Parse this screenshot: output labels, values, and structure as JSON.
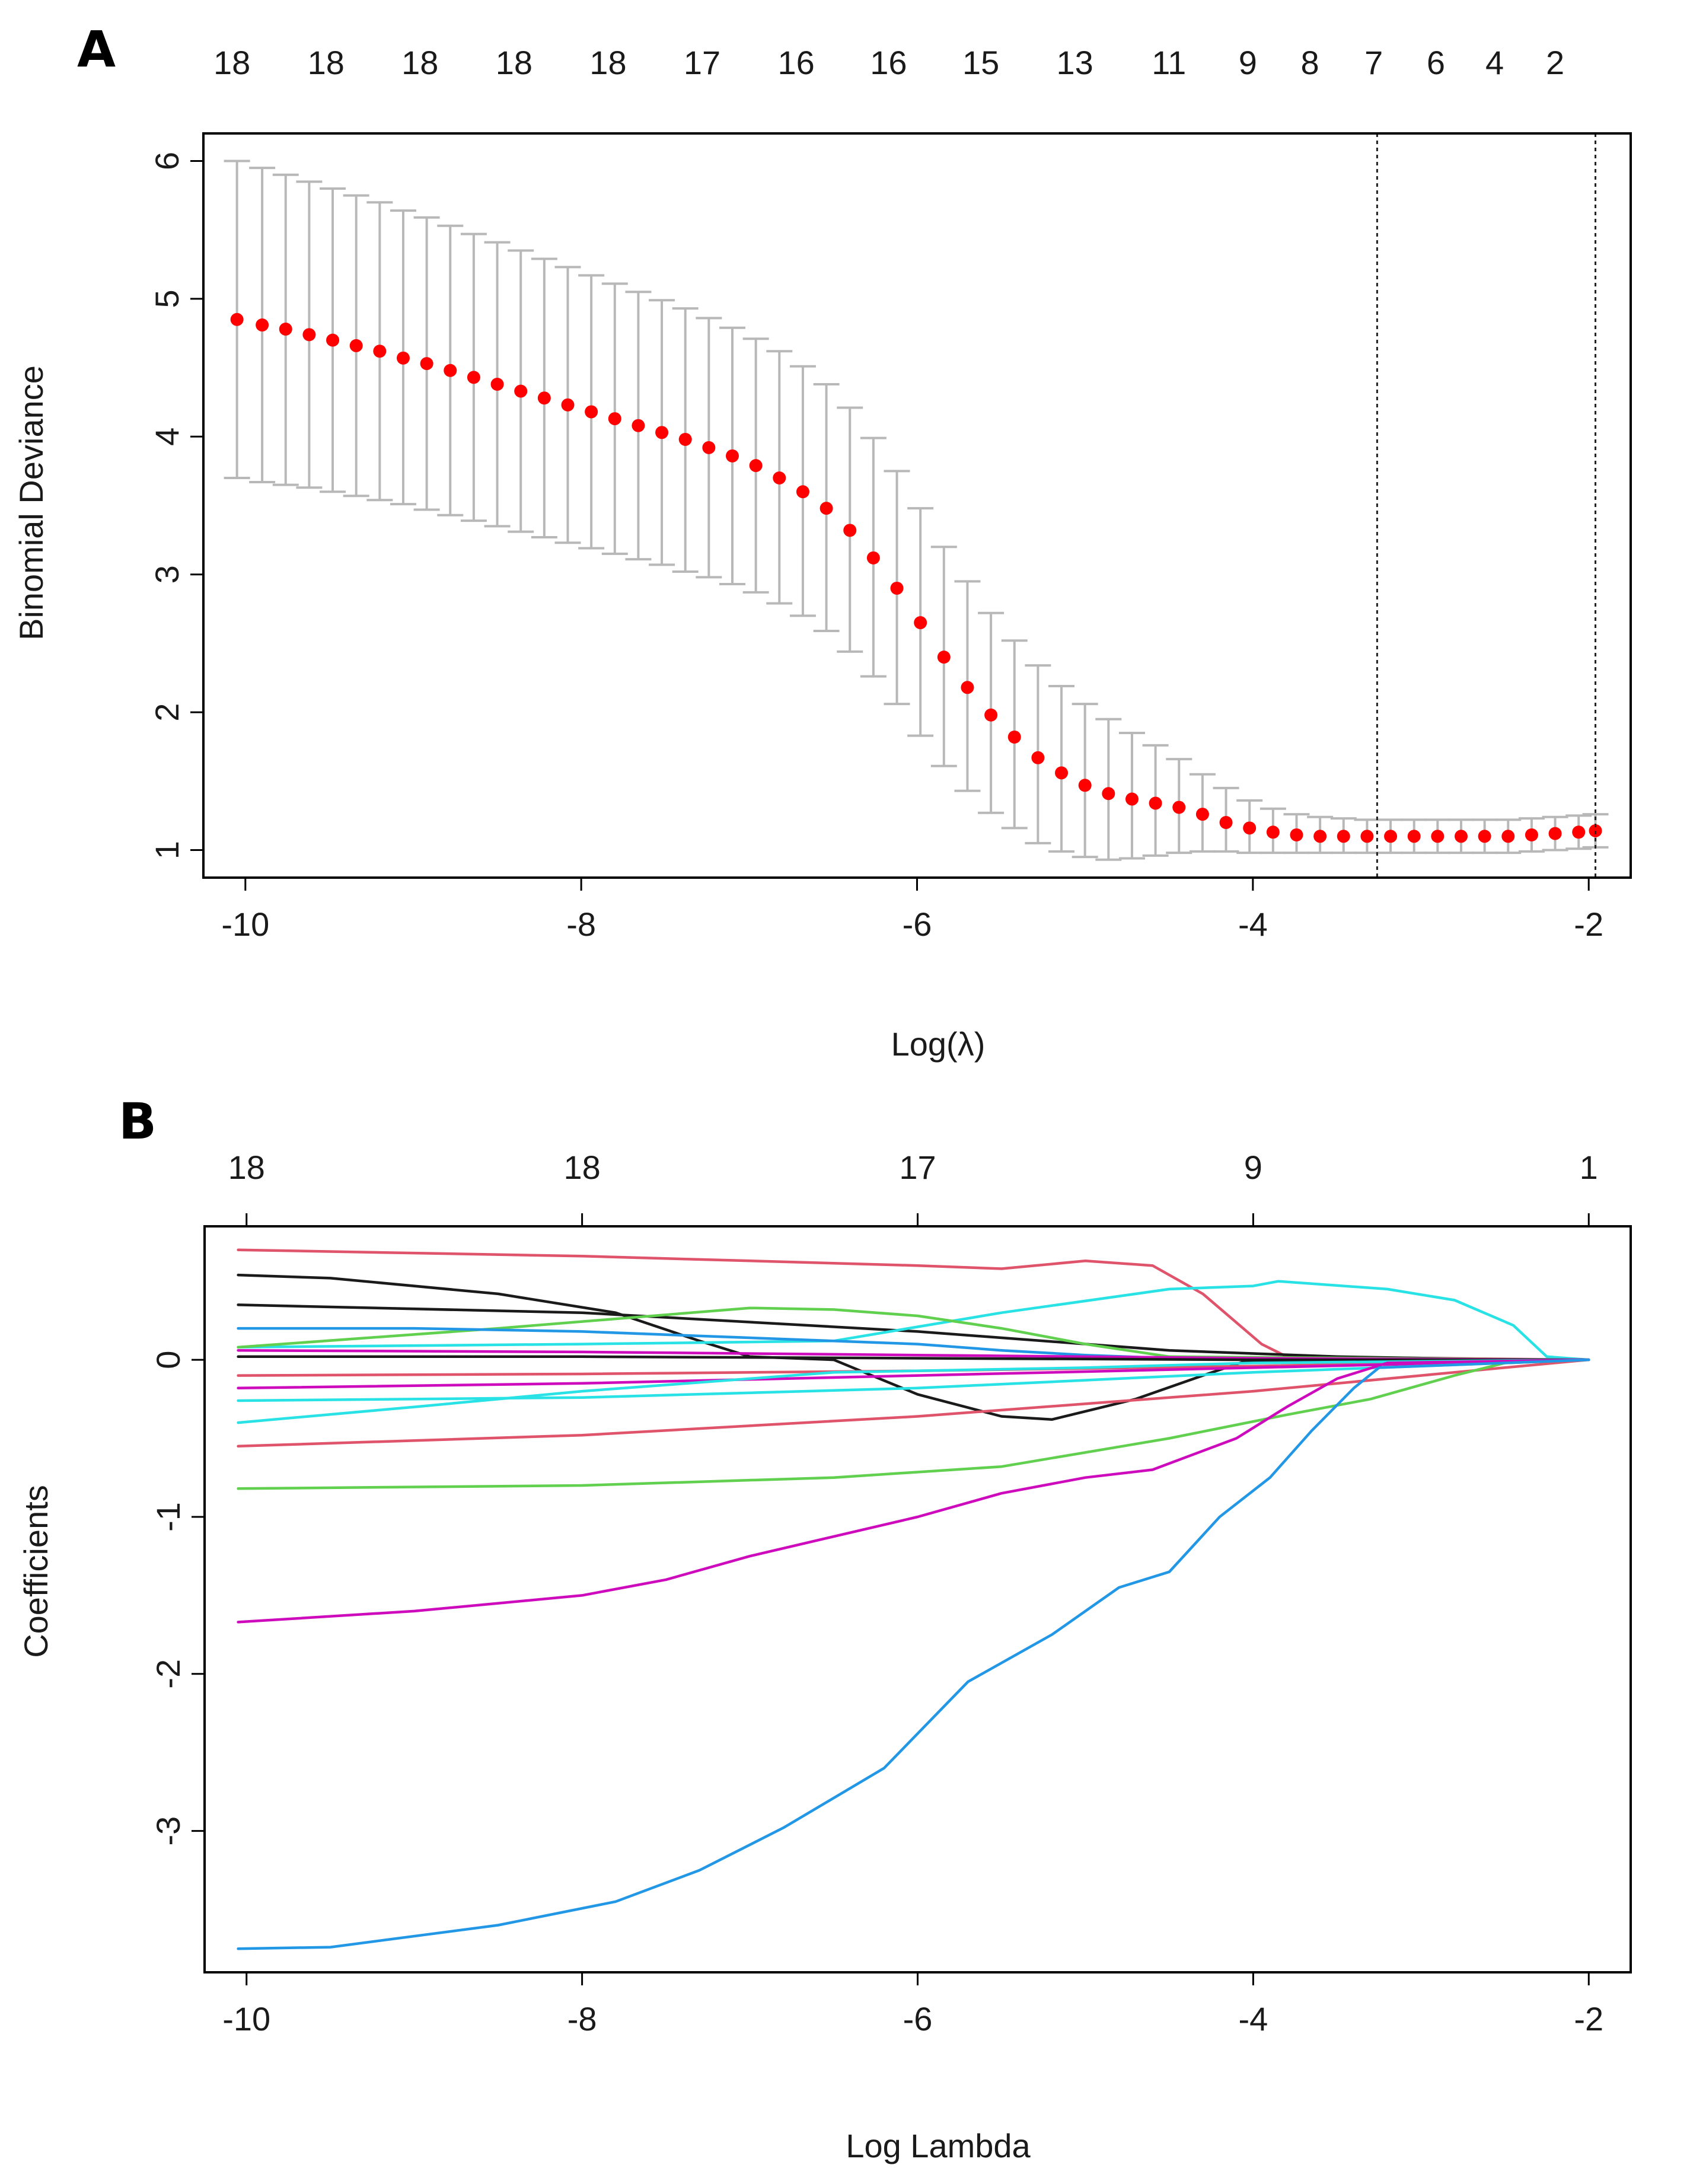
{
  "panels": {
    "a": {
      "letter": "A"
    },
    "b": {
      "letter": "B"
    }
  },
  "chart_data": [
    {
      "type": "scatter",
      "panel": "A",
      "title": "",
      "xlabel": "Log(λ)",
      "ylabel": "Binomial Deviance",
      "xlim": [
        -10.25,
        -1.75
      ],
      "ylim": [
        0.8,
        6.2
      ],
      "x_ticks": [
        -10,
        -8,
        -6,
        -4,
        -2
      ],
      "x_tick_labels": [
        "-10",
        "-8",
        "-6",
        "-4",
        "-2"
      ],
      "y_ticks": [
        1,
        2,
        3,
        4,
        5,
        6
      ],
      "y_tick_labels": [
        "1",
        "2",
        "3",
        "4",
        "5",
        "6"
      ],
      "top_axis": {
        "x": [
          -10.08,
          -9.52,
          -8.96,
          -8.4,
          -7.84,
          -7.28,
          -6.72,
          -6.17,
          -5.62,
          -5.06,
          -4.5,
          -4.03,
          -3.66,
          -3.28,
          -2.91,
          -2.56,
          -2.2
        ],
        "labels": [
          "18",
          "18",
          "18",
          "18",
          "18",
          "17",
          "16",
          "16",
          "15",
          "13",
          "11",
          "9",
          "8",
          "7",
          "6",
          "4",
          "2"
        ]
      },
      "point_color": "#ff0000",
      "errorbar_color": "#b8b8b8",
      "vertical_lines": [
        -3.26,
        -1.96
      ],
      "series": [
        {
          "x": [
            -10.05,
            -9.9,
            -9.76,
            -9.62,
            -9.48,
            -9.34,
            -9.2,
            -9.06,
            -8.92,
            -8.78,
            -8.64,
            -8.5,
            -8.36,
            -8.22,
            -8.08,
            -7.94,
            -7.8,
            -7.66,
            -7.52,
            -7.38,
            -7.24,
            -7.1,
            -6.96,
            -6.82,
            -6.68,
            -6.54,
            -6.4,
            -6.26,
            -6.12,
            -5.98,
            -5.84,
            -5.7,
            -5.56,
            -5.42,
            -5.28,
            -5.14,
            -5.0,
            -4.86,
            -4.72,
            -4.58,
            -4.44,
            -4.3,
            -4.16,
            -4.02,
            -3.88,
            -3.74,
            -3.6,
            -3.46,
            -3.32,
            -3.18,
            -3.04,
            -2.9,
            -2.76,
            -2.62,
            -2.48,
            -2.34,
            -2.2,
            -2.06,
            -1.96
          ],
          "y": [
            4.85,
            4.81,
            4.78,
            4.74,
            4.7,
            4.66,
            4.62,
            4.57,
            4.53,
            4.48,
            4.43,
            4.38,
            4.33,
            4.28,
            4.23,
            4.18,
            4.13,
            4.08,
            4.03,
            3.98,
            3.92,
            3.86,
            3.79,
            3.7,
            3.6,
            3.48,
            3.32,
            3.12,
            2.9,
            2.65,
            2.4,
            2.18,
            1.98,
            1.82,
            1.67,
            1.56,
            1.47,
            1.41,
            1.37,
            1.34,
            1.31,
            1.26,
            1.2,
            1.16,
            1.13,
            1.11,
            1.1,
            1.1,
            1.1,
            1.1,
            1.1,
            1.1,
            1.1,
            1.1,
            1.1,
            1.11,
            1.12,
            1.13,
            1.14
          ],
          "upper": [
            6.0,
            5.95,
            5.9,
            5.85,
            5.8,
            5.75,
            5.7,
            5.64,
            5.59,
            5.53,
            5.47,
            5.41,
            5.35,
            5.29,
            5.23,
            5.17,
            5.11,
            5.05,
            4.99,
            4.93,
            4.86,
            4.79,
            4.71,
            4.62,
            4.51,
            4.38,
            4.21,
            3.99,
            3.75,
            3.48,
            3.2,
            2.95,
            2.72,
            2.52,
            2.34,
            2.19,
            2.06,
            1.95,
            1.85,
            1.76,
            1.66,
            1.55,
            1.45,
            1.36,
            1.3,
            1.26,
            1.24,
            1.23,
            1.22,
            1.22,
            1.22,
            1.22,
            1.22,
            1.22,
            1.22,
            1.23,
            1.24,
            1.25,
            1.26
          ],
          "lower": [
            3.7,
            3.67,
            3.65,
            3.63,
            3.6,
            3.57,
            3.54,
            3.51,
            3.47,
            3.43,
            3.39,
            3.35,
            3.31,
            3.27,
            3.23,
            3.19,
            3.15,
            3.11,
            3.07,
            3.02,
            2.98,
            2.93,
            2.87,
            2.79,
            2.7,
            2.59,
            2.44,
            2.26,
            2.06,
            1.83,
            1.61,
            1.43,
            1.27,
            1.16,
            1.05,
            0.99,
            0.95,
            0.93,
            0.94,
            0.96,
            0.98,
            0.99,
            0.99,
            0.98,
            0.98,
            0.98,
            0.98,
            0.98,
            0.98,
            0.98,
            0.98,
            0.98,
            0.98,
            0.98,
            0.98,
            0.99,
            1.0,
            1.01,
            1.02
          ]
        }
      ]
    },
    {
      "type": "line",
      "panel": "B",
      "title": "",
      "xlabel": "Log Lambda",
      "ylabel": "Coefficients",
      "xlim": [
        -10.25,
        -1.75
      ],
      "ylim": [
        -3.9,
        0.85
      ],
      "x_ticks": [
        -10,
        -8,
        -6,
        -4,
        -2
      ],
      "x_tick_labels": [
        "-10",
        "-8",
        "-6",
        "-4",
        "-2"
      ],
      "y_ticks": [
        -3,
        -2,
        -1,
        0
      ],
      "y_tick_labels": [
        "-3",
        "-2",
        "-1",
        "0"
      ],
      "top_axis": {
        "x": [
          -10,
          -8,
          -6,
          -4,
          -2
        ],
        "labels": [
          "18",
          "18",
          "17",
          "9",
          "1"
        ]
      },
      "series": [
        {
          "color": "#df536b",
          "x": [
            -10.05,
            -8,
            -6,
            -5.5,
            -5.0,
            -4.6,
            -4.3,
            -3.95,
            -3.8,
            -2
          ],
          "y": [
            0.7,
            0.66,
            0.6,
            0.58,
            0.63,
            0.6,
            0.42,
            0.1,
            0.02,
            0
          ]
        },
        {
          "color": "#1a1a1a",
          "x": [
            -10.05,
            -9.5,
            -8.5,
            -7.8,
            -7.3,
            -7.0,
            -6.5,
            -6.0,
            -5.5,
            -5.2,
            -4.7,
            -4.3,
            -4.05,
            -2
          ],
          "y": [
            0.54,
            0.52,
            0.42,
            0.3,
            0.12,
            0.02,
            0.0,
            -0.22,
            -0.36,
            -0.38,
            -0.25,
            -0.1,
            -0.01,
            0
          ]
        },
        {
          "color": "#1a1a1a",
          "x": [
            -10.05,
            -8,
            -6,
            -4.5,
            -3.5,
            -2.4,
            -2
          ],
          "y": [
            0.35,
            0.3,
            0.18,
            0.06,
            0.02,
            0.0,
            0
          ]
        },
        {
          "color": "#28e2e5",
          "x": [
            -10.05,
            -8,
            -6.5,
            -5.5,
            -4.5,
            -4.0,
            -3.85,
            -3.2,
            -2.8,
            -2.45,
            -2.25,
            -2
          ],
          "y": [
            0.08,
            0.1,
            0.12,
            0.3,
            0.45,
            0.47,
            0.5,
            0.45,
            0.38,
            0.22,
            0.02,
            0
          ]
        },
        {
          "color": "#61d04f",
          "x": [
            -10.05,
            -8.5,
            -7.0,
            -6.5,
            -6.0,
            -5.5,
            -5.0,
            -4.5,
            -2
          ],
          "y": [
            0.08,
            0.2,
            0.33,
            0.32,
            0.28,
            0.2,
            0.1,
            0.02,
            0
          ]
        },
        {
          "color": "#2297e6",
          "x": [
            -10.05,
            -9,
            -8,
            -7,
            -6,
            -5.5,
            -5,
            -4.5,
            -2
          ],
          "y": [
            0.2,
            0.2,
            0.18,
            0.14,
            0.1,
            0.06,
            0.03,
            0.01,
            0
          ]
        },
        {
          "color": "#cd0bbc",
          "x": [
            -10.05,
            -8,
            -6,
            -4,
            -2
          ],
          "y": [
            0.06,
            0.05,
            0.03,
            0.01,
            0
          ]
        },
        {
          "color": "#1a1a1a",
          "x": [
            -10.05,
            -8,
            -6,
            -4,
            -2
          ],
          "y": [
            0.02,
            0.02,
            0.01,
            0.0,
            0
          ]
        },
        {
          "color": "#df536b",
          "x": [
            -10.05,
            -8,
            -6,
            -4,
            -2
          ],
          "y": [
            -0.1,
            -0.09,
            -0.07,
            -0.04,
            0
          ]
        },
        {
          "color": "#cd0bbc",
          "x": [
            -10.05,
            -8,
            -6,
            -4,
            -2
          ],
          "y": [
            -0.18,
            -0.15,
            -0.1,
            -0.05,
            0
          ]
        },
        {
          "color": "#28e2e5",
          "x": [
            -10.05,
            -8,
            -6,
            -4,
            -2
          ],
          "y": [
            -0.26,
            -0.24,
            -0.18,
            -0.08,
            0
          ]
        },
        {
          "color": "#28e2e5",
          "x": [
            -10.05,
            -9,
            -8,
            -6.5,
            -5,
            -4,
            -3,
            -2
          ],
          "y": [
            -0.4,
            -0.3,
            -0.2,
            -0.08,
            -0.05,
            -0.02,
            -0.01,
            0
          ]
        },
        {
          "color": "#df536b",
          "x": [
            -10.05,
            -8,
            -6,
            -4,
            -3,
            -2
          ],
          "y": [
            -0.55,
            -0.48,
            -0.36,
            -0.2,
            -0.1,
            0
          ]
        },
        {
          "color": "#61d04f",
          "x": [
            -10.05,
            -8,
            -6.5,
            -5.5,
            -4.5,
            -3.8,
            -3.3,
            -2.8,
            -2.5,
            -2
          ],
          "y": [
            -0.82,
            -0.8,
            -0.75,
            -0.68,
            -0.5,
            -0.35,
            -0.25,
            -0.1,
            -0.02,
            0
          ]
        },
        {
          "color": "#cd0bbc",
          "x": [
            -10.05,
            -9,
            -8,
            -7.5,
            -7,
            -6,
            -5.5,
            -5,
            -4.6,
            -4.1,
            -3.8,
            -3.5,
            -3.2,
            -2
          ],
          "y": [
            -1.67,
            -1.6,
            -1.5,
            -1.4,
            -1.25,
            -1.0,
            -0.85,
            -0.75,
            -0.7,
            -0.5,
            -0.3,
            -0.12,
            -0.02,
            0
          ]
        },
        {
          "color": "#2297e6",
          "x": [
            -10.05,
            -9.5,
            -8.5,
            -7.8,
            -7.3,
            -6.8,
            -6.2,
            -5.7,
            -5.2,
            -4.8,
            -4.5,
            -4.2,
            -3.9,
            -3.65,
            -3.4,
            -3.25,
            -2
          ],
          "y": [
            -3.75,
            -3.74,
            -3.6,
            -3.45,
            -3.25,
            -2.98,
            -2.6,
            -2.05,
            -1.75,
            -1.45,
            -1.35,
            -1.0,
            -0.75,
            -0.45,
            -0.18,
            -0.05,
            0
          ]
        }
      ]
    }
  ]
}
